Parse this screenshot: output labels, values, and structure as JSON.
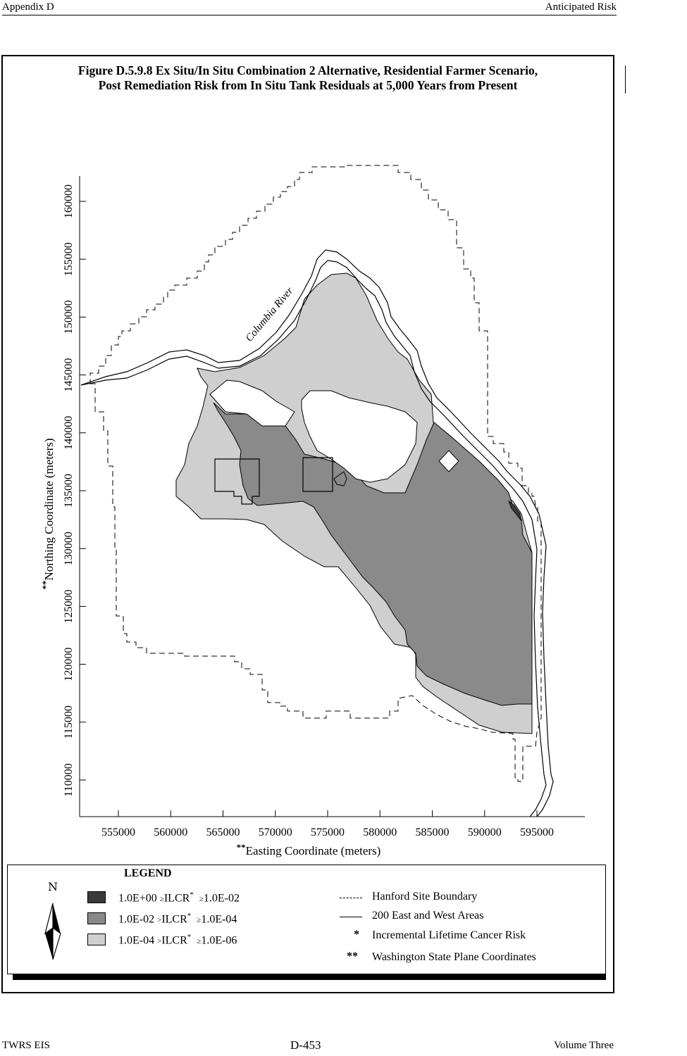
{
  "header": {
    "left": "Appendix D",
    "right": "Anticipated Risk"
  },
  "footer": {
    "left": "TWRS EIS",
    "center": "D-453",
    "right": "Volume Three"
  },
  "figure": {
    "title_line1": "Figure D.5.9.8  Ex Situ/In Situ Combination 2 Alternative, Residential Farmer Scenario,",
    "title_line2": "Post Remediation Risk from In Situ Tank Residuals at 5,000 Years from Present"
  },
  "map": {
    "x_axis_label_prefix": "**",
    "x_axis_label": "Easting Coordinate (meters)",
    "y_axis_label_prefix": "**",
    "y_axis_label": "Northing Coordinate (meters)",
    "x_ticks": [
      "555000",
      "560000",
      "565000",
      "570000",
      "575000",
      "580000",
      "585000",
      "590000",
      "595000"
    ],
    "y_ticks": [
      "110000",
      "115000",
      "120000",
      "125000",
      "130000",
      "135000",
      "140000",
      "145000",
      "150000",
      "155000",
      "160000"
    ],
    "river_label": "Columbia River",
    "colors": {
      "dark": "#3a3a3a",
      "medium": "#8a8a8a",
      "light": "#cfcfcf"
    }
  },
  "legend": {
    "title": "LEGEND",
    "north_symbol": "N",
    "risk_classes": [
      {
        "upper": "1.0E+00",
        "op1": "≥",
        "term": "ILCR",
        "star": "*",
        "op2": "≥",
        "lower": "1.0E-02"
      },
      {
        "upper": "1.0E-02",
        "op1": ">",
        "term": "ILCR",
        "star": "*",
        "op2": "≥",
        "lower": "1.0E-04"
      },
      {
        "upper": "1.0E-04",
        "op1": ">",
        "term": "ILCR",
        "star": "*",
        "op2": "≥",
        "lower": "1.0E-06"
      }
    ],
    "boundary_label": "Hanford Site Boundary",
    "areas_label": "200 East and West Areas",
    "star1_symbol": "*",
    "star1_label": "Incremental Lifetime Cancer Risk",
    "star2_symbol": "**",
    "star2_label": "Washington State Plane Coordinates"
  }
}
